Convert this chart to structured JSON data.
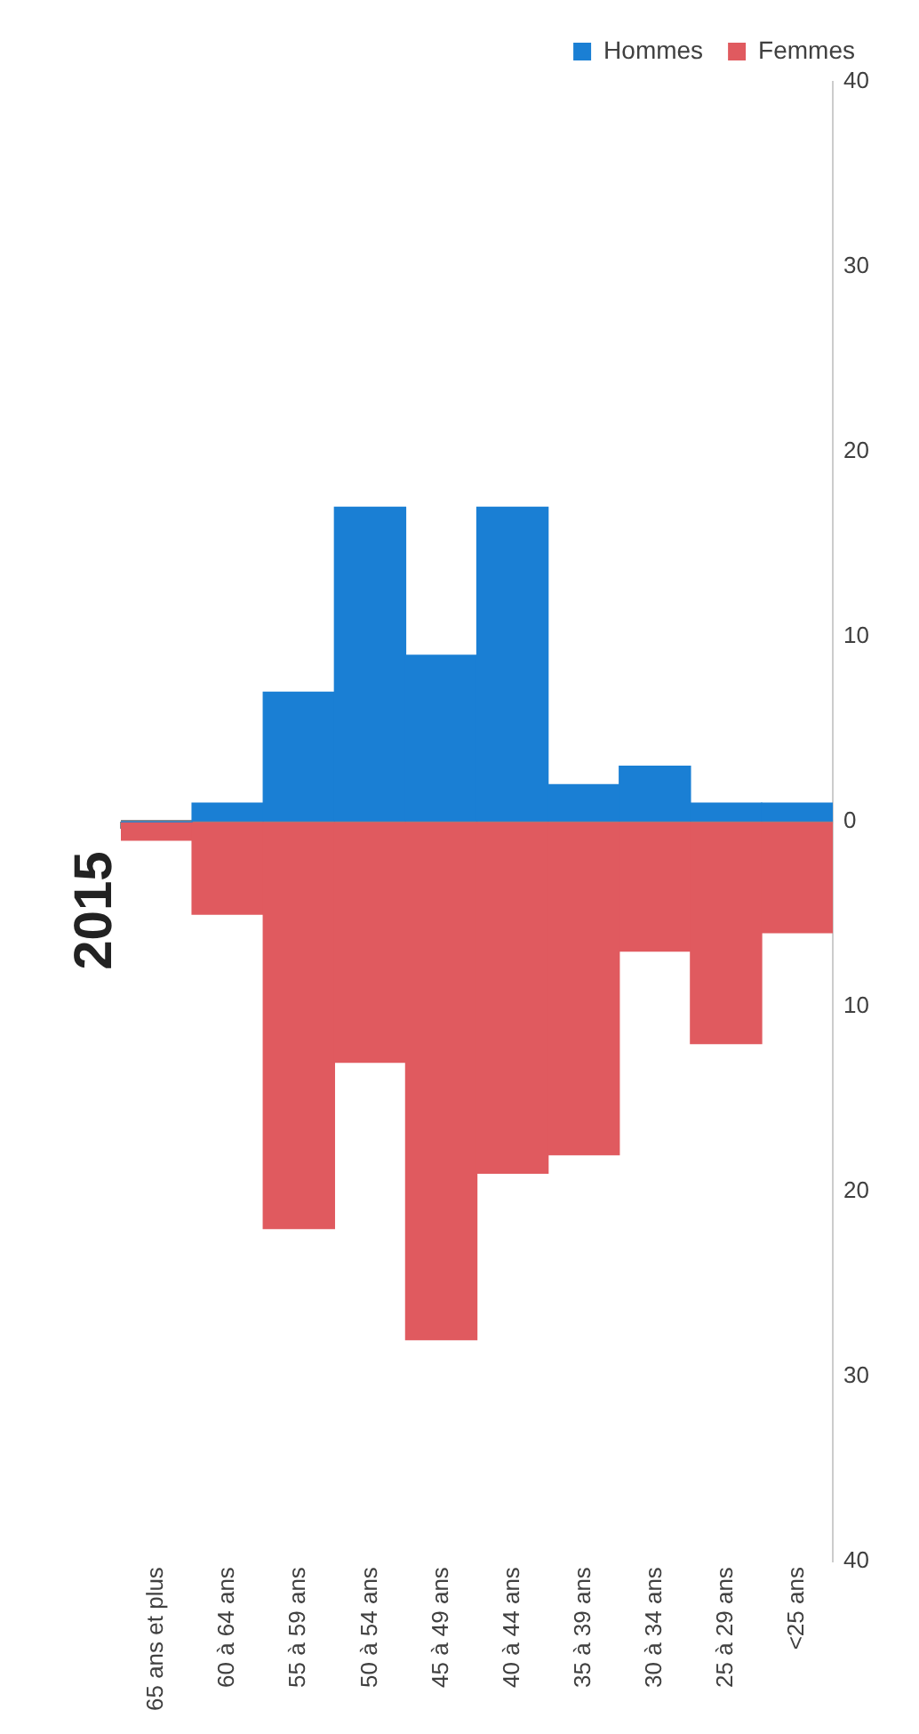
{
  "chart_data": {
    "type": "bar",
    "title": "2015",
    "categories": [
      "65 ans et plus",
      "60 à 64 ans",
      "55 à 59 ans",
      "50 à 54 ans",
      "45 à 49 ans",
      "40 à 44 ans",
      "35 à 39 ans",
      "30 à 34 ans",
      "25 à 29 ans",
      "<25 ans"
    ],
    "series": [
      {
        "name": "Hommes",
        "color": "#1a7fd4",
        "values": [
          0,
          1,
          7,
          17,
          9,
          17,
          2,
          3,
          1,
          1
        ]
      },
      {
        "name": "Femmes",
        "color": "#e05a5f",
        "values": [
          -1,
          -5,
          -22,
          -13,
          -28,
          -19,
          -18,
          -7,
          -12,
          -6
        ]
      }
    ],
    "ylim": [
      -40,
      40
    ],
    "yticks": [
      {
        "value": -40,
        "label": "40"
      },
      {
        "value": -30,
        "label": "30"
      },
      {
        "value": -20,
        "label": "20"
      },
      {
        "value": -10,
        "label": "10"
      },
      0,
      10,
      20,
      30,
      40
    ],
    "ref_lines": [
      {
        "axis": "y",
        "value": 0,
        "color": "#888888"
      }
    ],
    "grid": false,
    "stacked": true,
    "legend": "top right"
  }
}
